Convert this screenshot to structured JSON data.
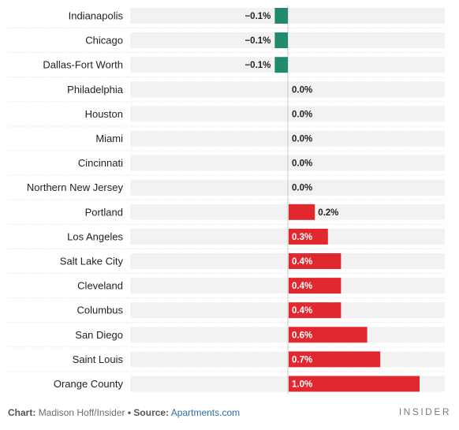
{
  "chart_data": {
    "type": "bar",
    "orientation": "horizontal",
    "categories": [
      "Indianapolis",
      "Chicago",
      "Dallas-Fort Worth",
      "Philadelphia",
      "Houston",
      "Miami",
      "Cincinnati",
      "Northern New Jersey",
      "Portland",
      "Los Angeles",
      "Salt Lake City",
      "Cleveland",
      "Columbus",
      "San Diego",
      "Saint Louis",
      "Orange County"
    ],
    "values": [
      -0.1,
      -0.1,
      -0.1,
      0.0,
      0.0,
      0.0,
      0.0,
      0.0,
      0.2,
      0.3,
      0.4,
      0.4,
      0.4,
      0.6,
      0.7,
      1.0
    ],
    "value_labels": [
      "−0.1%",
      "−0.1%",
      "−0.1%",
      "0.0%",
      "0.0%",
      "0.0%",
      "0.0%",
      "0.0%",
      "0.2%",
      "0.3%",
      "0.4%",
      "0.4%",
      "0.4%",
      "0.6%",
      "0.7%",
      "1.0%"
    ],
    "xlim": [
      -1.2,
      1.2
    ],
    "colors": {
      "negative": "#1f8a6e",
      "positive": "#e0282e",
      "track": "#f2f2f2",
      "zero_line": "#c8c8c8"
    }
  },
  "footer": {
    "chart_label": "Chart:",
    "chart_credit": "Madison Hoff/Insider",
    "bullet": "•",
    "source_label": "Source:",
    "source_value": "Apartments.com"
  },
  "brand": "INSIDER"
}
